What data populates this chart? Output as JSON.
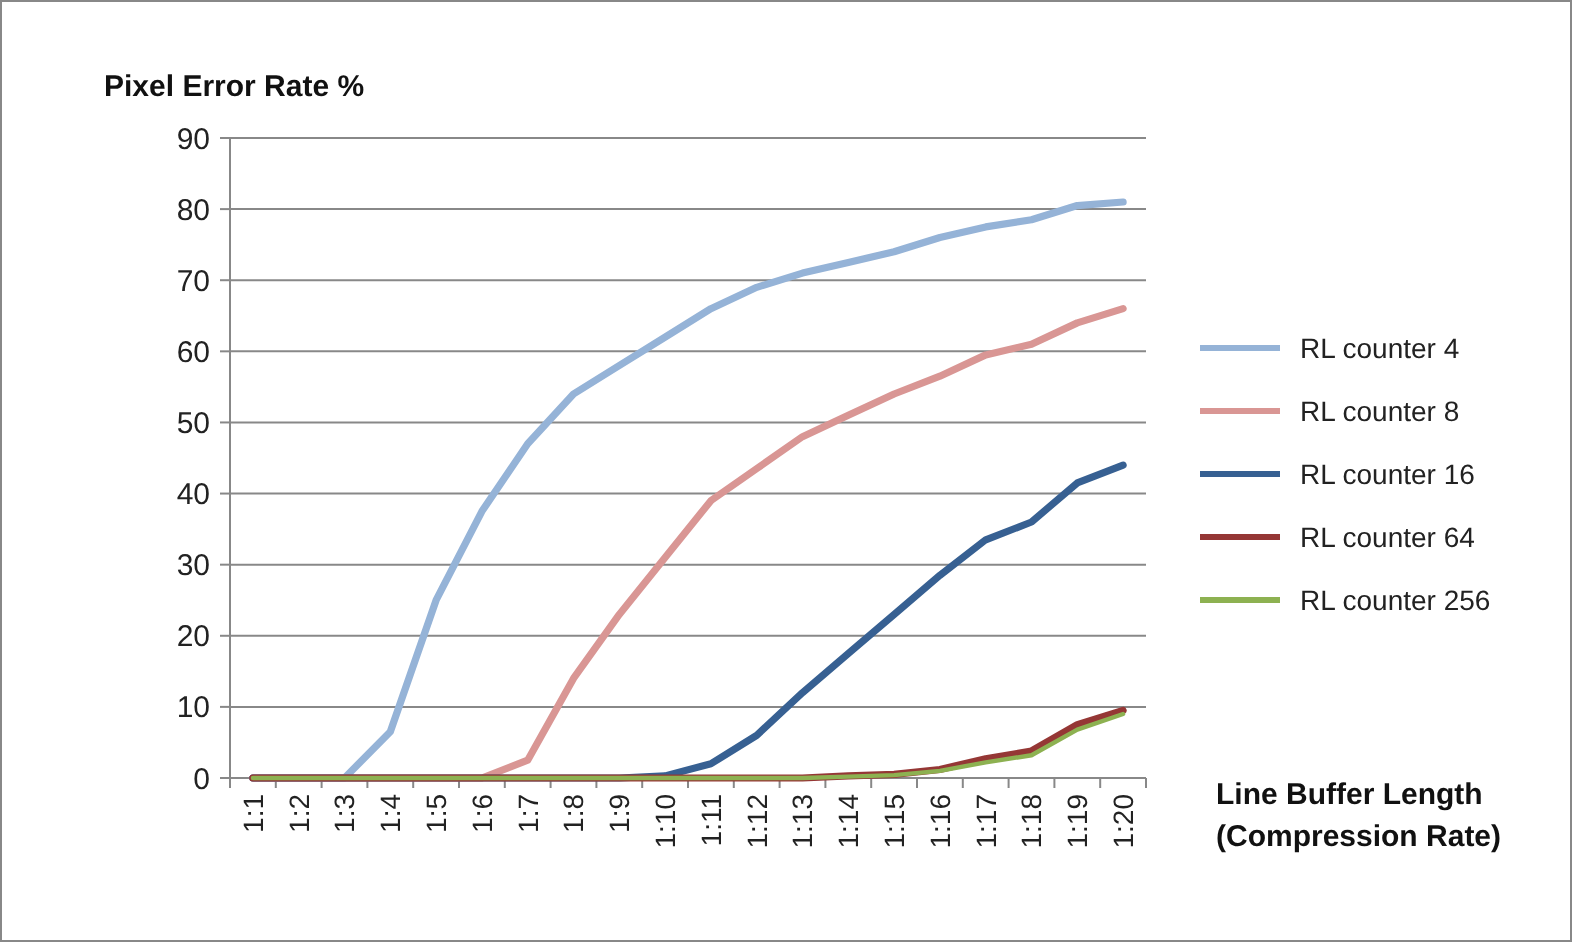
{
  "chart_data": {
    "type": "line",
    "ylabel": "Pixel Error Rate %",
    "xlabel": "Line Buffer Length\n(Compression Rate)",
    "categories": [
      "1:1",
      "1:2",
      "1:3",
      "1:4",
      "1:5",
      "1:6",
      "1:7",
      "1:8",
      "1:9",
      "1:10",
      "1:11",
      "1:12",
      "1:13",
      "1:14",
      "1:15",
      "1:16",
      "1:17",
      "1:18",
      "1:19",
      "1:20"
    ],
    "series": [
      {
        "name": "RL counter 4",
        "color": "#95b3d7",
        "values": [
          0,
          0,
          0,
          6.5,
          25,
          37.5,
          47,
          54,
          58,
          62,
          66,
          69,
          71,
          72.5,
          74,
          76,
          77.5,
          78.5,
          80.5,
          81
        ]
      },
      {
        "name": "RL counter 8",
        "color": "#d99694",
        "values": [
          0,
          0,
          0,
          0,
          0,
          0,
          2.5,
          14,
          23,
          31,
          39,
          43.5,
          48,
          51,
          54,
          56.5,
          59.5,
          61,
          64,
          66
        ]
      },
      {
        "name": "RL counter 16",
        "color": "#376092",
        "values": [
          0,
          0,
          0,
          0,
          0,
          0,
          0,
          0,
          0,
          0.3,
          2,
          6,
          12,
          17.5,
          23,
          28.5,
          33.5,
          36,
          41.5,
          44
        ]
      },
      {
        "name": "RL counter 64",
        "color": "#953735",
        "values": [
          0,
          0,
          0,
          0,
          0,
          0,
          0,
          0,
          0,
          0,
          0,
          0,
          0,
          0.3,
          0.5,
          1.2,
          2.7,
          3.8,
          7.5,
          9.5
        ]
      },
      {
        "name": "RL counter 256",
        "color": "#8db151",
        "values": [
          0,
          0,
          0,
          0,
          0,
          0,
          0,
          0,
          0,
          0,
          0,
          0,
          0,
          0.2,
          0.4,
          1,
          2.2,
          3.2,
          6.8,
          9
        ]
      }
    ],
    "ylim": [
      0,
      90
    ],
    "yticks": [
      0,
      10,
      20,
      30,
      40,
      50,
      60,
      70,
      80,
      90
    ],
    "grid": "y",
    "legend": "right",
    "marker": "none",
    "line_style": "solid"
  }
}
